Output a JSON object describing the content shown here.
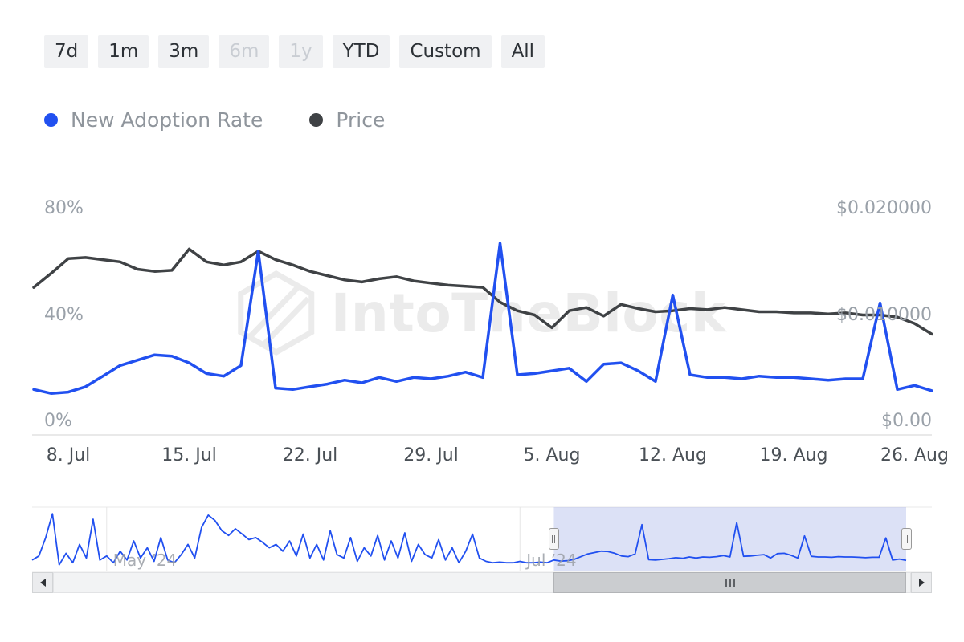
{
  "range_selector": {
    "buttons": [
      {
        "label": "7d",
        "enabled": true
      },
      {
        "label": "1m",
        "enabled": true
      },
      {
        "label": "3m",
        "enabled": true
      },
      {
        "label": "6m",
        "enabled": false
      },
      {
        "label": "1y",
        "enabled": false
      },
      {
        "label": "YTD",
        "enabled": true
      },
      {
        "label": "Custom",
        "enabled": true
      },
      {
        "label": "All",
        "enabled": true
      }
    ]
  },
  "legend": {
    "items": [
      {
        "label": "New Adoption Rate",
        "color": "#2150f0"
      },
      {
        "label": "Price",
        "color": "#3f4245"
      }
    ]
  },
  "watermark": {
    "text": "IntoTheBlock"
  },
  "chart_data": {
    "type": "line",
    "title": "",
    "x_start": "6. Jul",
    "x_end": "27. Aug",
    "x_tick_labels": [
      "8. Jul",
      "15. Jul",
      "22. Jul",
      "29. Jul",
      "5. Aug",
      "12. Aug",
      "19. Aug",
      "26. Aug"
    ],
    "x_tick_indices": [
      2,
      9,
      16,
      23,
      30,
      37,
      44,
      51
    ],
    "grid": false,
    "legend_position": "top-left",
    "left_axis": {
      "min": 0,
      "max": 80,
      "ticks": [
        {
          "value": 80,
          "label": "80%"
        },
        {
          "value": 40,
          "label": "40%"
        },
        {
          "value": 0,
          "label": "0%"
        }
      ]
    },
    "right_axis": {
      "min": 0,
      "max": 0.02,
      "ticks": [
        {
          "value": 0.02,
          "label": "$0.020000"
        },
        {
          "value": 0.01,
          "label": "$0.010000"
        },
        {
          "value": 0,
          "label": "$0.00"
        }
      ]
    },
    "series": [
      {
        "name": "New Adoption Rate",
        "axis": "left",
        "unit": "%",
        "color": "#2150f0",
        "values": [
          12,
          10.5,
          11,
          13,
          17,
          21,
          23,
          25,
          24.5,
          22,
          18,
          17,
          21,
          64,
          12.5,
          12,
          13,
          14,
          15.5,
          14.5,
          16.5,
          15,
          16.5,
          16,
          17,
          18.5,
          16.5,
          67,
          17.5,
          18,
          19,
          20,
          15,
          21.5,
          22,
          19,
          15,
          47.5,
          17.5,
          16.5,
          16.5,
          16,
          17,
          16.5,
          16.5,
          16,
          15.5,
          16,
          16,
          44.5,
          12,
          13.5,
          11.5
        ]
      },
      {
        "name": "Price",
        "axis": "right",
        "unit": "USD",
        "color": "#3f4245",
        "values": [
          0.0126,
          0.0139,
          0.0153,
          0.0154,
          0.0152,
          0.015,
          0.0143,
          0.0141,
          0.0142,
          0.0162,
          0.015,
          0.0147,
          0.015,
          0.016,
          0.0152,
          0.0147,
          0.0141,
          0.0137,
          0.0133,
          0.0131,
          0.0134,
          0.0136,
          0.0132,
          0.013,
          0.0128,
          0.0127,
          0.0126,
          0.0112,
          0.0104,
          0.01,
          0.0088,
          0.0104,
          0.0107,
          0.0099,
          0.011,
          0.0106,
          0.0103,
          0.0104,
          0.0106,
          0.0105,
          0.0107,
          0.0105,
          0.0103,
          0.0103,
          0.0102,
          0.0102,
          0.0101,
          0.0102,
          0.01,
          0.01,
          0.0098,
          0.0092,
          0.0082
        ]
      }
    ]
  },
  "navigator": {
    "month_labels": [
      {
        "label": "May ’24",
        "day_index": 11
      },
      {
        "label": "Jul ’24",
        "day_index": 72
      }
    ],
    "pre_values": [
      12,
      18,
      45,
      80,
      5,
      22,
      8,
      35,
      15,
      72,
      12,
      18,
      8,
      25,
      12,
      40,
      15,
      30,
      10,
      45,
      12,
      8,
      20,
      35,
      15,
      60,
      78,
      70,
      55,
      48,
      58,
      50,
      42,
      45,
      38,
      30,
      35,
      25,
      40,
      18,
      50,
      15,
      35,
      12,
      55,
      20,
      15,
      45,
      10,
      30,
      18,
      48,
      12,
      40,
      15,
      52,
      10,
      35,
      20,
      15,
      42,
      12,
      30,
      8,
      25,
      50,
      15,
      10,
      8,
      9,
      8,
      8,
      10,
      8,
      8,
      9,
      8
    ]
  }
}
